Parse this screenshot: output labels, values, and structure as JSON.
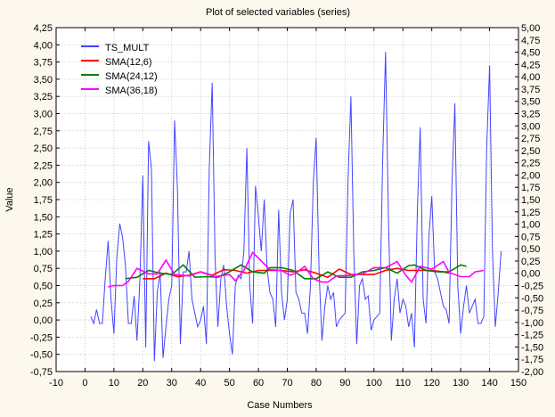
{
  "chart_data": {
    "type": "line",
    "title": "Plot of selected variables (series)",
    "xlabel": "Case Numbers",
    "ylabel": "Value",
    "xlim": [
      -10,
      150
    ],
    "ylim": [
      -0.75,
      4.25
    ],
    "y2lim": [
      -2.0,
      5.0
    ],
    "x_ticks": [
      "-10",
      "0",
      "10",
      "20",
      "30",
      "40",
      "50",
      "60",
      "70",
      "80",
      "90",
      "100",
      "110",
      "120",
      "130",
      "140",
      "150"
    ],
    "y_ticks": [
      "-0,75",
      "-0,50",
      "-0,25",
      "0,00",
      "0,25",
      "0,50",
      "0,75",
      "1,00",
      "1,25",
      "1,50",
      "1,75",
      "2,00",
      "2,25",
      "2,50",
      "2,75",
      "3,00",
      "3,25",
      "3,50",
      "3,75",
      "4,00",
      "4,25"
    ],
    "y2_ticks": [
      "-2,00",
      "-1,75",
      "-1,50",
      "-1,25",
      "-1,00",
      "-0,75",
      "-0,50",
      "-0,25",
      "0,00",
      "0,25",
      "0,50",
      "0,75",
      "1,00",
      "1,25",
      "1,50",
      "1,75",
      "2,00",
      "2,25",
      "2,50",
      "2,75",
      "3,00",
      "3,25",
      "3,50",
      "3,75",
      "4,00",
      "4,25",
      "4,50",
      "4,75",
      "5,00"
    ],
    "grid": true,
    "legend_position": "top-left",
    "series": [
      {
        "name": "TS_MULT",
        "color": "#4444ff",
        "x_start": 2,
        "values": [
          0.05,
          -0.05,
          0.15,
          -0.05,
          -0.05,
          0.6,
          1.15,
          0.3,
          -0.2,
          0.9,
          1.4,
          1.2,
          0.8,
          -0.05,
          -0.05,
          0.35,
          -0.3,
          0.6,
          2.1,
          -0.4,
          2.6,
          2.2,
          -0.6,
          0.4,
          0.7,
          -0.55,
          -0.1,
          0.3,
          0.5,
          2.9,
          1.9,
          -0.35,
          0.7,
          0.7,
          1.0,
          0.3,
          0.1,
          -0.1,
          0.0,
          0.2,
          -0.35,
          2.2,
          3.45,
          0.9,
          -0.1,
          0.6,
          0.8,
          0.2,
          -0.2,
          -0.5,
          0.5,
          0.65,
          0.6,
          1.0,
          2.5,
          0.5,
          -0.05,
          1.95,
          1.5,
          1.0,
          1.75,
          0.75,
          0.4,
          0.3,
          -0.1,
          1.6,
          0.4,
          0.0,
          0.3,
          1.55,
          1.75,
          0.4,
          0.3,
          0.1,
          0.1,
          -0.2,
          0.5,
          2.0,
          2.65,
          0.7,
          -0.3,
          0.2,
          0.5,
          0.3,
          0.4,
          -0.1,
          0.0,
          0.05,
          0.1,
          2.0,
          3.25,
          1.0,
          -0.35,
          0.5,
          0.6,
          0.3,
          0.35,
          -0.15,
          0.0,
          0.05,
          0.1,
          2.3,
          3.9,
          1.5,
          -0.3,
          0.3,
          0.6,
          0.1,
          0.3,
          0.2,
          -0.1,
          0.1,
          -0.4,
          1.6,
          2.8,
          0.3,
          -0.05,
          1.2,
          1.8,
          0.7,
          0.6,
          0.4,
          0.2,
          0.15,
          -0.05,
          2.0,
          3.15,
          0.5,
          -0.2,
          0.2,
          0.5,
          0.1,
          0.2,
          0.3,
          -0.05,
          -0.05,
          0.05,
          2.5,
          3.7,
          1.0,
          -0.1,
          0.4,
          1.0
        ]
      },
      {
        "name": "SMA(12,6)",
        "color": "#ff0000",
        "points": [
          [
            20,
            0.6
          ],
          [
            24,
            0.6
          ],
          [
            28,
            0.68
          ],
          [
            32,
            0.63
          ],
          [
            36,
            0.65
          ],
          [
            40,
            0.7
          ],
          [
            44,
            0.65
          ],
          [
            48,
            0.73
          ],
          [
            52,
            0.72
          ],
          [
            56,
            0.68
          ],
          [
            60,
            0.72
          ],
          [
            64,
            0.72
          ],
          [
            68,
            0.72
          ],
          [
            72,
            0.7
          ],
          [
            76,
            0.73
          ],
          [
            80,
            0.68
          ],
          [
            84,
            0.62
          ],
          [
            88,
            0.74
          ],
          [
            92,
            0.66
          ],
          [
            96,
            0.66
          ],
          [
            100,
            0.66
          ],
          [
            104,
            0.72
          ],
          [
            108,
            0.75
          ],
          [
            112,
            0.72
          ],
          [
            116,
            0.72
          ],
          [
            120,
            0.72
          ],
          [
            124,
            0.7
          ],
          [
            126,
            0.68
          ]
        ]
      },
      {
        "name": "SMA(24,12)",
        "color": "#008000",
        "points": [
          [
            14,
            0.6
          ],
          [
            18,
            0.62
          ],
          [
            22,
            0.72
          ],
          [
            26,
            0.68
          ],
          [
            30,
            0.66
          ],
          [
            34,
            0.8
          ],
          [
            38,
            0.62
          ],
          [
            42,
            0.63
          ],
          [
            46,
            0.62
          ],
          [
            50,
            0.7
          ],
          [
            54,
            0.8
          ],
          [
            58,
            0.7
          ],
          [
            62,
            0.68
          ],
          [
            64,
            0.76
          ],
          [
            68,
            0.76
          ],
          [
            72,
            0.72
          ],
          [
            76,
            0.6
          ],
          [
            80,
            0.6
          ],
          [
            84,
            0.7
          ],
          [
            88,
            0.62
          ],
          [
            92,
            0.62
          ],
          [
            96,
            0.7
          ],
          [
            100,
            0.72
          ],
          [
            104,
            0.76
          ],
          [
            108,
            0.68
          ],
          [
            112,
            0.79
          ],
          [
            114,
            0.8
          ],
          [
            118,
            0.72
          ],
          [
            122,
            0.7
          ],
          [
            126,
            0.7
          ],
          [
            130,
            0.8
          ],
          [
            132,
            0.78
          ]
        ]
      },
      {
        "name": "SMA(36,18)",
        "color": "#ff00ff",
        "points": [
          [
            8,
            0.48
          ],
          [
            10,
            0.5
          ],
          [
            13,
            0.5
          ],
          [
            15,
            0.56
          ],
          [
            18,
            0.75
          ],
          [
            22,
            0.67
          ],
          [
            25,
            0.67
          ],
          [
            28,
            0.87
          ],
          [
            31,
            0.66
          ],
          [
            36,
            0.64
          ],
          [
            40,
            0.7
          ],
          [
            45,
            0.63
          ],
          [
            50,
            0.66
          ],
          [
            52,
            0.57
          ],
          [
            55,
            0.72
          ],
          [
            58,
            0.98
          ],
          [
            60,
            0.9
          ],
          [
            64,
            0.73
          ],
          [
            68,
            0.72
          ],
          [
            71,
            0.65
          ],
          [
            73,
            0.68
          ],
          [
            76,
            0.78
          ],
          [
            79,
            0.6
          ],
          [
            82,
            0.55
          ],
          [
            84,
            0.55
          ],
          [
            87,
            0.64
          ],
          [
            92,
            0.65
          ],
          [
            96,
            0.67
          ],
          [
            100,
            0.76
          ],
          [
            104,
            0.76
          ],
          [
            108,
            0.85
          ],
          [
            111,
            0.65
          ],
          [
            113,
            0.55
          ],
          [
            116,
            0.78
          ],
          [
            120,
            0.74
          ],
          [
            124,
            0.85
          ],
          [
            126,
            0.69
          ],
          [
            130,
            0.63
          ],
          [
            133,
            0.63
          ],
          [
            135,
            0.7
          ],
          [
            138,
            0.72
          ]
        ]
      }
    ]
  }
}
